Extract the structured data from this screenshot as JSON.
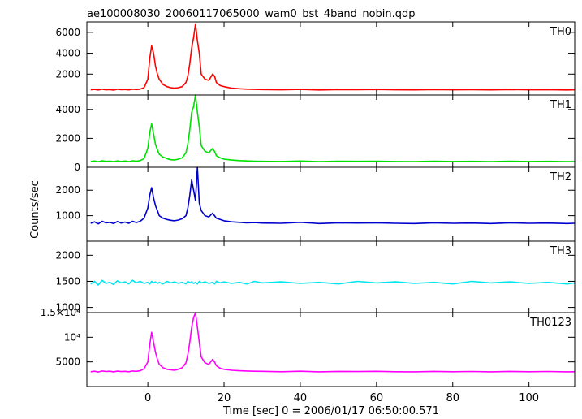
{
  "title": "ae100008030_20060117065000_wam0_bst_4band_nobin.qdp",
  "xlabel": "Time [sec] 0 = 2006/01/17 06:50:00.571",
  "ylabel": "Counts/sec",
  "x_ticks": [
    "0",
    "20",
    "40",
    "60",
    "80",
    "100"
  ],
  "chart_data": [
    {
      "type": "line",
      "panel": "TH0",
      "color": "#ff0000",
      "xlim": [
        -16,
        112
      ],
      "ylim": [
        0,
        7000
      ],
      "y_ticks": [
        {
          "value": 2000,
          "label": "2000"
        },
        {
          "value": 4000,
          "label": "4000"
        },
        {
          "value": 6000,
          "label": "6000"
        }
      ],
      "series": [
        {
          "name": "TH0",
          "x": [
            -15,
            -14,
            -13,
            -12,
            -11,
            -10,
            -9,
            -8,
            -7,
            -6,
            -5,
            -4,
            -3,
            -2,
            -1,
            0,
            0.5,
            1,
            1.5,
            2,
            2.5,
            3,
            4,
            5,
            6,
            7,
            8,
            9,
            10,
            10.5,
            11,
            11.5,
            12,
            12.5,
            13,
            13.5,
            14,
            15,
            16,
            17,
            17.5,
            18,
            19,
            20,
            22,
            24,
            26,
            28,
            30,
            35,
            40,
            45,
            50,
            55,
            60,
            65,
            70,
            75,
            80,
            85,
            90,
            95,
            100,
            105,
            110,
            112
          ],
          "y": [
            500,
            540,
            480,
            560,
            500,
            520,
            470,
            550,
            510,
            530,
            490,
            560,
            520,
            560,
            700,
            1500,
            3500,
            4700,
            4000,
            2800,
            2000,
            1500,
            1000,
            800,
            700,
            650,
            700,
            800,
            1200,
            1800,
            3000,
            4500,
            5500,
            6800,
            5200,
            4000,
            2000,
            1500,
            1400,
            2000,
            1800,
            1200,
            900,
            800,
            650,
            600,
            560,
            540,
            520,
            500,
            540,
            480,
            520,
            510,
            530,
            500,
            490,
            520,
            500,
            510,
            490,
            520,
            500,
            510,
            480,
            500
          ]
        }
      ]
    },
    {
      "type": "line",
      "panel": "TH1",
      "color": "#00e000",
      "xlim": [
        -16,
        112
      ],
      "ylim": [
        0,
        5000
      ],
      "y_ticks": [
        {
          "value": 0,
          "label": "0"
        },
        {
          "value": 2000,
          "label": "2000"
        },
        {
          "value": 4000,
          "label": "4000"
        }
      ],
      "series": [
        {
          "name": "TH1",
          "x": [
            -15,
            -14,
            -13,
            -12,
            -11,
            -10,
            -9,
            -8,
            -7,
            -6,
            -5,
            -4,
            -3,
            -2,
            -1,
            0,
            0.5,
            1,
            1.5,
            2,
            2.5,
            3,
            4,
            5,
            6,
            7,
            8,
            9,
            10,
            10.5,
            11,
            11.5,
            12,
            12.5,
            13,
            13.5,
            14,
            15,
            16,
            17,
            17.5,
            18,
            19,
            20,
            22,
            24,
            26,
            28,
            30,
            35,
            40,
            45,
            50,
            55,
            60,
            65,
            70,
            75,
            80,
            85,
            90,
            95,
            100,
            105,
            110,
            112
          ],
          "y": [
            400,
            430,
            380,
            450,
            410,
            420,
            390,
            440,
            400,
            430,
            390,
            450,
            420,
            460,
            600,
            1300,
            2400,
            3000,
            2300,
            1600,
            1200,
            900,
            700,
            600,
            520,
            500,
            560,
            650,
            1000,
            1600,
            2600,
            3800,
            4200,
            5000,
            3800,
            2800,
            1500,
            1100,
            1000,
            1300,
            1100,
            800,
            650,
            560,
            500,
            460,
            440,
            420,
            410,
            400,
            430,
            390,
            420,
            410,
            420,
            400,
            390,
            420,
            400,
            410,
            390,
            420,
            400,
            410,
            390,
            400
          ]
        }
      ]
    },
    {
      "type": "line",
      "panel": "TH2",
      "color": "#0000cc",
      "xlim": [
        -16,
        112
      ],
      "ylim": [
        0,
        2900
      ],
      "y_ticks": [
        {
          "value": 1000,
          "label": "1000"
        },
        {
          "value": 2000,
          "label": "2000"
        }
      ],
      "series": [
        {
          "name": "TH2",
          "x": [
            -15,
            -14,
            -13,
            -12,
            -11,
            -10,
            -9,
            -8,
            -7,
            -6,
            -5,
            -4,
            -3,
            -2,
            -1,
            0,
            0.5,
            1,
            1.5,
            2,
            2.5,
            3,
            4,
            5,
            6,
            7,
            8,
            9,
            10,
            10.5,
            11,
            11.5,
            12,
            12.5,
            13,
            13.5,
            14,
            15,
            16,
            17,
            17.5,
            18,
            19,
            20,
            22,
            24,
            26,
            28,
            30,
            35,
            40,
            45,
            50,
            55,
            60,
            65,
            70,
            75,
            80,
            85,
            90,
            95,
            100,
            105,
            110,
            112
          ],
          "y": [
            700,
            760,
            680,
            780,
            720,
            740,
            690,
            770,
            710,
            750,
            700,
            780,
            730,
            780,
            900,
            1300,
            1800,
            2100,
            1700,
            1400,
            1200,
            1000,
            900,
            850,
            820,
            800,
            830,
            880,
            1000,
            1300,
            1800,
            2400,
            2000,
            1600,
            2900,
            1500,
            1200,
            1000,
            950,
            1100,
            1000,
            900,
            850,
            800,
            760,
            740,
            720,
            730,
            710,
            700,
            740,
            690,
            720,
            710,
            720,
            700,
            690,
            720,
            700,
            710,
            690,
            720,
            700,
            710,
            690,
            700
          ]
        }
      ]
    },
    {
      "type": "line",
      "panel": "TH3",
      "color": "#00e5ee",
      "xlim": [
        -16,
        112
      ],
      "ylim": [
        900,
        2270
      ],
      "y_ticks": [
        {
          "value": 1000,
          "label": "1000"
        },
        {
          "value": 1500,
          "label": "1500"
        },
        {
          "value": 2000,
          "label": "2000"
        }
      ],
      "series": [
        {
          "name": "TH3",
          "x": [
            -15,
            -14,
            -13,
            -12,
            -11,
            -10,
            -9,
            -8,
            -7,
            -6,
            -5,
            -4,
            -3,
            -2,
            -1,
            0,
            0.5,
            1,
            1.5,
            2,
            2.5,
            3,
            4,
            5,
            6,
            7,
            8,
            9,
            10,
            10.5,
            11,
            11.5,
            12,
            12.5,
            13,
            13.5,
            14,
            15,
            16,
            17,
            17.5,
            18,
            19,
            20,
            22,
            24,
            26,
            28,
            30,
            35,
            40,
            45,
            50,
            55,
            60,
            65,
            70,
            75,
            80,
            85,
            90,
            95,
            100,
            105,
            110,
            112
          ],
          "y": [
            1450,
            1500,
            1430,
            1520,
            1460,
            1480,
            1440,
            1510,
            1470,
            1490,
            1450,
            1520,
            1470,
            1500,
            1460,
            1480,
            1450,
            1500,
            1470,
            1490,
            1460,
            1480,
            1450,
            1500,
            1470,
            1490,
            1460,
            1480,
            1450,
            1500,
            1470,
            1490,
            1460,
            1480,
            1450,
            1500,
            1470,
            1490,
            1460,
            1480,
            1450,
            1500,
            1470,
            1490,
            1460,
            1480,
            1450,
            1500,
            1470,
            1490,
            1460,
            1480,
            1450,
            1500,
            1470,
            1490,
            1460,
            1480,
            1450,
            1500,
            1470,
            1490,
            1460,
            1480,
            1450,
            1470
          ]
        }
      ]
    },
    {
      "type": "line",
      "panel": "TH0123",
      "color": "#ff00ff",
      "xlim": [
        -16,
        112
      ],
      "ylim": [
        0,
        15000
      ],
      "y_ticks": [
        {
          "value": 5000,
          "label": "5000"
        },
        {
          "value": 10000,
          "label": "10⁴"
        },
        {
          "value": 15000,
          "label": "1.5×10⁴"
        }
      ],
      "series": [
        {
          "name": "TH0123",
          "x": [
            -15,
            -14,
            -13,
            -12,
            -11,
            -10,
            -9,
            -8,
            -7,
            -6,
            -5,
            -4,
            -3,
            -2,
            -1,
            0,
            0.5,
            1,
            1.5,
            2,
            2.5,
            3,
            4,
            5,
            6,
            7,
            8,
            9,
            10,
            10.5,
            11,
            11.5,
            12,
            12.5,
            13,
            13.5,
            14,
            15,
            16,
            17,
            17.5,
            18,
            19,
            20,
            22,
            24,
            26,
            28,
            30,
            35,
            40,
            45,
            50,
            55,
            60,
            65,
            70,
            75,
            80,
            85,
            90,
            95,
            100,
            105,
            110,
            112
          ],
          "y": [
            3000,
            3100,
            2950,
            3150,
            3050,
            3100,
            2980,
            3120,
            3040,
            3080,
            3000,
            3150,
            3080,
            3200,
            3600,
            5000,
            8500,
            11000,
            9000,
            7000,
            5500,
            4500,
            3800,
            3500,
            3400,
            3300,
            3500,
            3800,
            4800,
            6500,
            9000,
            12000,
            14000,
            15000,
            12000,
            9000,
            6000,
            4800,
            4500,
            5500,
            5000,
            4200,
            3700,
            3500,
            3300,
            3200,
            3150,
            3100,
            3080,
            3000,
            3100,
            2980,
            3060,
            3040,
            3080,
            3000,
            2980,
            3060,
            3000,
            3050,
            2990,
            3060,
            3000,
            3050,
            2980,
            3000
          ]
        }
      ]
    }
  ]
}
